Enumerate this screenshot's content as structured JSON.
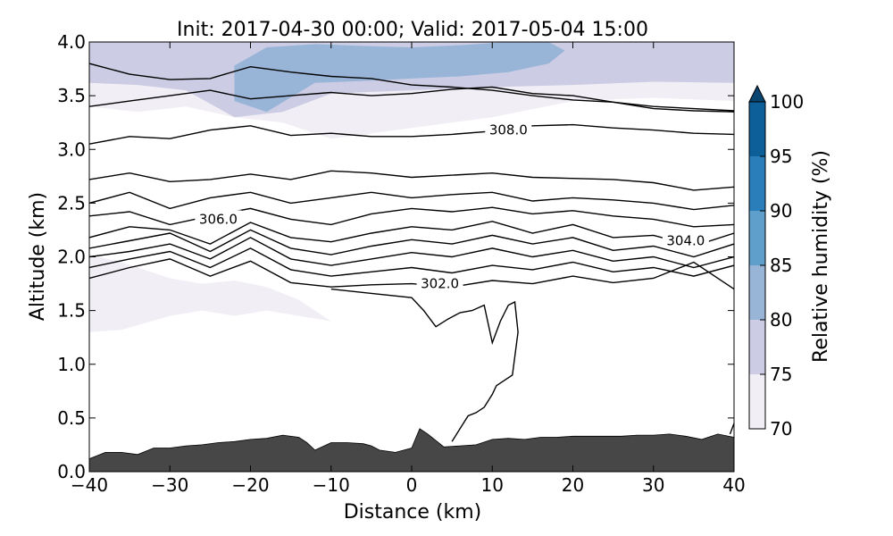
{
  "chart_data": {
    "type": "cross-section",
    "title": "Init: 2017-04-30 00:00; Valid: 2017-05-04 15:00",
    "xlabel": "Distance (km)",
    "ylabel": "Altitude (km)",
    "xlim": [
      -40,
      40
    ],
    "ylim": [
      0.0,
      4.0
    ],
    "xticks": [
      -40,
      -30,
      -20,
      -10,
      0,
      10,
      20,
      30,
      40
    ],
    "xtick_labels": [
      "−40",
      "−30",
      "−20",
      "−10",
      "0",
      "10",
      "20",
      "30",
      "40"
    ],
    "yticks": [
      0.0,
      0.5,
      1.0,
      1.5,
      2.0,
      2.5,
      3.0,
      3.5,
      4.0
    ],
    "ytick_labels": [
      "0.0",
      "0.5",
      "1.0",
      "1.5",
      "2.0",
      "2.5",
      "3.0",
      "3.5",
      "4.0"
    ],
    "colorbar": {
      "label": "Relative humidity (%)",
      "levels": [
        70,
        75,
        80,
        85,
        90,
        95,
        100
      ],
      "tick_labels": [
        "70",
        "75",
        "80",
        "85",
        "90",
        "95",
        "100"
      ],
      "colors": [
        "#f1eef5",
        "#ccccE4",
        "#98b5d8",
        "#5e9fcc",
        "#2a7fbb",
        "#0d5f9a",
        "#0a456f"
      ],
      "extend": "max"
    },
    "rh_fill": [
      {
        "level": 70,
        "x": [
          -40,
          -34,
          -28,
          -22,
          -16,
          -10,
          0,
          10,
          20,
          30,
          40,
          40,
          30,
          20,
          10,
          0,
          -10,
          -16,
          -22,
          -28,
          -34,
          -40
        ],
        "y": [
          4.0,
          4.0,
          4.0,
          4.0,
          4.0,
          4.0,
          4.0,
          4.0,
          4.0,
          4.0,
          4.0,
          3.45,
          3.48,
          3.45,
          3.3,
          3.2,
          3.1,
          3.25,
          3.3,
          3.4,
          3.35,
          3.4
        ]
      },
      {
        "level": 75,
        "x": [
          -40,
          -34,
          -28,
          -22,
          -16,
          -10,
          0,
          10,
          20,
          30,
          40,
          40,
          30,
          20,
          10,
          0,
          -10,
          -16,
          -22,
          -28,
          -34,
          -40
        ],
        "y": [
          4.0,
          4.0,
          4.0,
          4.0,
          4.0,
          4.0,
          4.0,
          4.0,
          4.0,
          4.0,
          4.0,
          3.62,
          3.63,
          3.6,
          3.58,
          3.55,
          3.52,
          3.35,
          3.3,
          3.55,
          3.6,
          3.62
        ]
      },
      {
        "level": 80,
        "x": [
          -22,
          -18,
          -12,
          -5,
          0,
          6,
          12,
          17,
          19,
          17,
          12,
          6,
          0,
          -5,
          -12,
          -18,
          -22
        ],
        "y": [
          3.78,
          3.95,
          3.98,
          3.96,
          3.95,
          3.97,
          4.0,
          4.0,
          3.92,
          3.8,
          3.72,
          3.68,
          3.66,
          3.64,
          3.62,
          3.35,
          3.45
        ]
      },
      {
        "level": 80,
        "x": [
          -40,
          -36,
          -32,
          -30,
          -32,
          -36,
          -40
        ],
        "y": [
          2.0,
          1.92,
          1.8,
          1.65,
          1.55,
          1.5,
          1.6
        ]
      },
      {
        "level": 85,
        "x": [
          -40,
          -38,
          -36,
          -34,
          -32,
          -35,
          -38,
          -40
        ],
        "y": [
          1.9,
          1.82,
          1.78,
          1.74,
          1.68,
          1.64,
          1.62,
          1.66
        ]
      },
      {
        "level": 90,
        "x": [
          -40,
          -39,
          -38.5,
          -39,
          -40
        ],
        "y": [
          1.82,
          1.8,
          1.72,
          1.64,
          1.66
        ]
      },
      {
        "level": 70,
        "x": [
          -40,
          -36,
          -30,
          -26,
          -22,
          -18,
          -14,
          -10,
          -14,
          -18,
          -22,
          -26,
          -30,
          -36,
          -40
        ],
        "y": [
          2.02,
          1.95,
          1.8,
          1.75,
          1.78,
          1.72,
          1.6,
          1.4,
          1.45,
          1.5,
          1.45,
          1.5,
          1.45,
          1.32,
          1.3
        ]
      }
    ],
    "theta_contours": [
      {
        "x": [
          -40,
          -35,
          -30,
          -25,
          -20,
          -15,
          -10,
          -5,
          0,
          5,
          10,
          15,
          20,
          25,
          30,
          35,
          40
        ],
        "y": [
          3.8,
          3.7,
          3.65,
          3.66,
          3.77,
          3.72,
          3.68,
          3.66,
          3.6,
          3.58,
          3.55,
          3.5,
          3.46,
          3.44,
          3.4,
          3.38,
          3.36
        ]
      },
      {
        "x": [
          -40,
          -35,
          -30,
          -25,
          -20,
          -15,
          -10,
          -5,
          0,
          5,
          10,
          15,
          20,
          25,
          30,
          35,
          40
        ],
        "y": [
          3.4,
          3.45,
          3.5,
          3.55,
          3.47,
          3.5,
          3.53,
          3.5,
          3.52,
          3.56,
          3.58,
          3.52,
          3.5,
          3.44,
          3.38,
          3.36,
          3.35
        ]
      },
      {
        "x": [
          -40,
          -35,
          -30,
          -25,
          -20,
          -15,
          -10,
          -5,
          0,
          5,
          10,
          15,
          20,
          25,
          30,
          35,
          40
        ],
        "y": [
          3.05,
          3.12,
          3.1,
          3.18,
          3.22,
          3.13,
          3.15,
          3.12,
          3.12,
          3.14,
          3.17,
          3.22,
          3.23,
          3.2,
          3.18,
          3.15,
          3.14
        ],
        "label": "308.0",
        "label_x": 12,
        "label_y": 3.18
      },
      {
        "x": [
          -40,
          -35,
          -30,
          -25,
          -20,
          -15,
          -10,
          -5,
          0,
          5,
          10,
          15,
          20,
          25,
          30,
          35,
          40
        ],
        "y": [
          2.72,
          2.78,
          2.7,
          2.72,
          2.77,
          2.72,
          2.8,
          2.78,
          2.74,
          2.76,
          2.78,
          2.74,
          2.73,
          2.72,
          2.69,
          2.62,
          2.65
        ]
      },
      {
        "x": [
          -40,
          -35,
          -30,
          -25,
          -20,
          -15,
          -10,
          -5,
          0,
          5,
          10,
          15,
          20,
          25,
          30,
          35,
          40
        ],
        "y": [
          2.5,
          2.6,
          2.45,
          2.55,
          2.6,
          2.5,
          2.55,
          2.6,
          2.55,
          2.58,
          2.6,
          2.52,
          2.55,
          2.53,
          2.5,
          2.44,
          2.48
        ]
      },
      {
        "x": [
          -40,
          -35,
          -30,
          -25,
          -20,
          -15,
          -10,
          -5,
          0,
          5,
          10,
          15,
          20,
          25,
          30,
          35,
          40
        ],
        "y": [
          2.38,
          2.42,
          2.3,
          2.38,
          2.45,
          2.35,
          2.3,
          2.4,
          2.45,
          2.42,
          2.46,
          2.4,
          2.43,
          2.38,
          2.35,
          2.28,
          2.3
        ],
        "label": "306.0",
        "label_x": -24,
        "label_y": 2.35
      },
      {
        "x": [
          -40,
          -35,
          -30,
          -25,
          -20,
          -15,
          -10,
          -5,
          0,
          5,
          10,
          15,
          20,
          25,
          30,
          35,
          40
        ],
        "y": [
          2.18,
          2.28,
          2.25,
          2.12,
          2.32,
          2.18,
          2.14,
          2.22,
          2.28,
          2.25,
          2.33,
          2.22,
          2.3,
          2.18,
          2.2,
          2.1,
          2.22
        ]
      },
      {
        "x": [
          -40,
          -35,
          -30,
          -25,
          -20,
          -15,
          -10,
          -5,
          0,
          5,
          10,
          15,
          20,
          25,
          30,
          35,
          40
        ],
        "y": [
          2.08,
          2.15,
          2.22,
          2.05,
          2.25,
          2.08,
          2.02,
          2.1,
          2.16,
          2.12,
          2.2,
          2.12,
          2.18,
          2.06,
          2.1,
          2.0,
          2.12
        ],
        "label": "304.0",
        "label_x": 34,
        "label_y": 2.15
      },
      {
        "x": [
          -40,
          -35,
          -30,
          -25,
          -20,
          -15,
          -10,
          -5,
          0,
          5,
          10,
          15,
          20,
          25,
          30,
          35,
          40
        ],
        "y": [
          2.0,
          2.05,
          2.12,
          1.98,
          2.18,
          1.98,
          1.92,
          1.98,
          2.04,
          2.0,
          2.08,
          2.0,
          2.06,
          1.96,
          2.0,
          1.9,
          2.0
        ]
      },
      {
        "x": [
          -40,
          -35,
          -30,
          -25,
          -20,
          -15,
          -10,
          -5,
          0,
          5,
          10,
          15,
          20,
          25,
          30,
          35,
          40
        ],
        "y": [
          1.9,
          1.98,
          2.05,
          1.9,
          2.08,
          1.88,
          1.82,
          1.86,
          1.9,
          1.85,
          1.92,
          1.88,
          1.95,
          1.86,
          1.9,
          1.82,
          1.92
        ]
      },
      {
        "x": [
          -40,
          -35,
          -30,
          -25,
          -20,
          -15,
          -10,
          -5,
          0,
          5,
          10,
          15,
          20,
          25,
          30,
          35,
          40
        ],
        "y": [
          1.8,
          1.9,
          1.98,
          1.82,
          1.96,
          1.76,
          1.72,
          1.74,
          1.75,
          1.72,
          1.78,
          1.75,
          1.82,
          1.76,
          1.8,
          1.95,
          1.7
        ],
        "label": "302.0",
        "label_x": 3.5,
        "label_y": 1.75
      },
      {
        "x": [
          -10,
          -5,
          0,
          1.5,
          3,
          4.5,
          6,
          7.5,
          9,
          10,
          11,
          12,
          12.8,
          13.2,
          12.5,
          11.5,
          10.5,
          10,
          9,
          8,
          7,
          6,
          5
        ],
        "y": [
          1.7,
          1.66,
          1.62,
          1.5,
          1.35,
          1.42,
          1.48,
          1.5,
          1.55,
          1.2,
          1.4,
          1.55,
          1.58,
          1.3,
          0.9,
          0.85,
          0.8,
          0.72,
          0.6,
          0.55,
          0.52,
          0.4,
          0.28
        ]
      },
      {
        "x": [
          39.5,
          40
        ],
        "y": [
          0.35,
          0.45
        ]
      }
    ],
    "terrain": {
      "x": [
        -40,
        -38,
        -36,
        -34,
        -32,
        -30,
        -28,
        -26,
        -24,
        -22,
        -20,
        -18,
        -16,
        -14,
        -13,
        -12,
        -10,
        -8,
        -6,
        -5,
        -4,
        -2,
        0,
        1,
        2,
        4,
        6,
        8,
        10,
        12,
        14,
        16,
        18,
        20,
        22,
        24,
        26,
        28,
        30,
        32,
        34,
        36,
        38,
        40
      ],
      "y": [
        0.12,
        0.18,
        0.18,
        0.16,
        0.22,
        0.22,
        0.24,
        0.25,
        0.27,
        0.28,
        0.3,
        0.31,
        0.34,
        0.32,
        0.27,
        0.2,
        0.27,
        0.27,
        0.26,
        0.24,
        0.2,
        0.18,
        0.22,
        0.4,
        0.35,
        0.23,
        0.24,
        0.25,
        0.3,
        0.31,
        0.3,
        0.32,
        0.32,
        0.33,
        0.33,
        0.33,
        0.33,
        0.34,
        0.34,
        0.35,
        0.33,
        0.3,
        0.35,
        0.32
      ],
      "color": "#474747"
    }
  }
}
